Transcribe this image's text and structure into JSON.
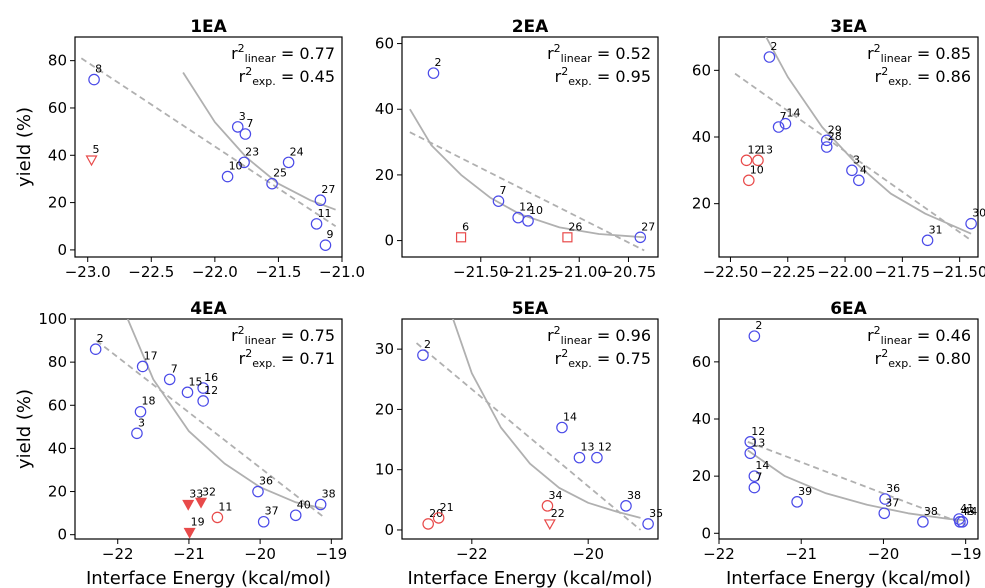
{
  "chart_data": [
    {
      "type": "scatter",
      "title": "1EA",
      "r2_linear": "0.77",
      "r2_exp": "0.45",
      "xlim": [
        -23.1,
        -21.0
      ],
      "ylim": [
        -3,
        90
      ],
      "xticks": [
        "-23.0",
        "-22.5",
        "-22.0",
        "-21.5",
        "-21.0"
      ],
      "xtick_values": [
        -23.0,
        -22.5,
        -22.0,
        -21.5,
        -21.0
      ],
      "yticks": [
        "0",
        "20",
        "40",
        "60",
        "80"
      ],
      "ytick_values": [
        0,
        20,
        40,
        60,
        80
      ],
      "ylabel": "yield (%)",
      "xlabel": "",
      "linear_fit": [
        [
          -23.05,
          81
        ],
        [
          -21.05,
          10
        ]
      ],
      "exp_fit": [
        [
          -22.25,
          75
        ],
        [
          -22.0,
          54
        ],
        [
          -21.75,
          39
        ],
        [
          -21.5,
          28
        ],
        [
          -21.25,
          21
        ],
        [
          -21.05,
          17
        ]
      ],
      "points": [
        {
          "x": -22.95,
          "y": 72,
          "label": "8",
          "style": "blue-circle"
        },
        {
          "x": -22.97,
          "y": 38,
          "label": "5",
          "style": "red-triangle-open"
        },
        {
          "x": -21.82,
          "y": 52,
          "label": "3",
          "style": "blue-circle"
        },
        {
          "x": -21.76,
          "y": 49,
          "label": "7",
          "style": "blue-circle"
        },
        {
          "x": -21.77,
          "y": 37,
          "label": "23",
          "style": "blue-circle"
        },
        {
          "x": -21.9,
          "y": 31,
          "label": "10",
          "style": "blue-circle"
        },
        {
          "x": -21.42,
          "y": 37,
          "label": "24",
          "style": "blue-circle"
        },
        {
          "x": -21.55,
          "y": 28,
          "label": "25",
          "style": "blue-circle"
        },
        {
          "x": -21.17,
          "y": 21,
          "label": "27",
          "style": "blue-circle"
        },
        {
          "x": -21.2,
          "y": 11,
          "label": "11",
          "style": "blue-circle"
        },
        {
          "x": -21.13,
          "y": 2,
          "label": "9",
          "style": "blue-circle"
        }
      ]
    },
    {
      "type": "scatter",
      "title": "2EA",
      "r2_linear": "0.52",
      "r2_exp": "0.95",
      "xlim": [
        -21.9,
        -20.6
      ],
      "ylim": [
        -5,
        62
      ],
      "xticks": [
        "-21.50",
        "-21.25",
        "-21.00",
        "-20.75"
      ],
      "xtick_values": [
        -21.5,
        -21.25,
        -21.0,
        -20.75
      ],
      "yticks": [
        "0",
        "20",
        "40",
        "60"
      ],
      "ytick_values": [
        0,
        20,
        40,
        60
      ],
      "ylabel": "",
      "xlabel": "",
      "linear_fit": [
        [
          -21.86,
          33
        ],
        [
          -20.67,
          -3
        ]
      ],
      "exp_fit": [
        [
          -21.86,
          40
        ],
        [
          -21.75,
          29
        ],
        [
          -21.6,
          20
        ],
        [
          -21.45,
          13
        ],
        [
          -21.3,
          8
        ],
        [
          -21.1,
          4
        ],
        [
          -20.9,
          2
        ],
        [
          -20.67,
          1
        ]
      ],
      "points": [
        {
          "x": -21.74,
          "y": 51,
          "label": "2",
          "style": "blue-circle"
        },
        {
          "x": -21.41,
          "y": 12,
          "label": "7",
          "style": "blue-circle"
        },
        {
          "x": -21.31,
          "y": 7,
          "label": "12",
          "style": "blue-circle"
        },
        {
          "x": -21.26,
          "y": 6,
          "label": "10",
          "style": "blue-circle"
        },
        {
          "x": -20.69,
          "y": 1,
          "label": "27",
          "style": "blue-circle"
        },
        {
          "x": -21.6,
          "y": 1,
          "label": "6",
          "style": "red-square-open"
        },
        {
          "x": -21.06,
          "y": 1,
          "label": "26",
          "style": "red-square-open"
        }
      ]
    },
    {
      "type": "scatter",
      "title": "3EA",
      "r2_linear": "0.85",
      "r2_exp": "0.86",
      "xlim": [
        -22.55,
        -21.42
      ],
      "ylim": [
        4,
        70
      ],
      "xticks": [
        "-22.50",
        "-22.25",
        "-22.00",
        "-21.75",
        "-21.50"
      ],
      "xtick_values": [
        -22.5,
        -22.25,
        -22.0,
        -21.75,
        -21.5
      ],
      "yticks": [
        "20",
        "40",
        "60"
      ],
      "ytick_values": [
        20,
        40,
        60
      ],
      "ylabel": "",
      "xlabel": "",
      "linear_fit": [
        [
          -22.48,
          59
        ],
        [
          -21.45,
          9
        ]
      ],
      "exp_fit": [
        [
          -22.36,
          72
        ],
        [
          -22.25,
          58
        ],
        [
          -22.1,
          43
        ],
        [
          -21.95,
          32
        ],
        [
          -21.8,
          23
        ],
        [
          -21.65,
          17
        ],
        [
          -21.45,
          11
        ]
      ],
      "points": [
        {
          "x": -22.33,
          "y": 64,
          "label": "2",
          "style": "blue-circle"
        },
        {
          "x": -22.29,
          "y": 43,
          "label": "7",
          "style": "blue-circle"
        },
        {
          "x": -22.26,
          "y": 44,
          "label": "14",
          "style": "blue-circle"
        },
        {
          "x": -22.08,
          "y": 39,
          "label": "29",
          "style": "blue-circle"
        },
        {
          "x": -22.08,
          "y": 37,
          "label": "28",
          "style": "blue-circle"
        },
        {
          "x": -21.97,
          "y": 30,
          "label": "3",
          "style": "blue-circle"
        },
        {
          "x": -21.94,
          "y": 27,
          "label": "4",
          "style": "blue-circle"
        },
        {
          "x": -21.64,
          "y": 9,
          "label": "31",
          "style": "blue-circle"
        },
        {
          "x": -21.45,
          "y": 14,
          "label": "30",
          "style": "blue-circle"
        },
        {
          "x": -22.43,
          "y": 33,
          "label": "12",
          "style": "red-circle"
        },
        {
          "x": -22.38,
          "y": 33,
          "label": "13",
          "style": "red-circle"
        },
        {
          "x": -22.42,
          "y": 27,
          "label": "10",
          "style": "red-circle"
        }
      ]
    },
    {
      "type": "scatter",
      "title": "4EA",
      "r2_linear": "0.75",
      "r2_exp": "0.71",
      "xlim": [
        -22.6,
        -18.85
      ],
      "ylim": [
        -2,
        100
      ],
      "xticks": [
        "-22",
        "-21",
        "-20",
        "-19"
      ],
      "xtick_values": [
        -22,
        -21,
        -20,
        -19
      ],
      "yticks": [
        "0",
        "20",
        "40",
        "60",
        "80",
        "100"
      ],
      "ytick_values": [
        0,
        20,
        40,
        60,
        80,
        100
      ],
      "ylabel": "yield (%)",
      "xlabel": "Interface Energy (kcal/mol)",
      "linear_fit": [
        [
          -22.3,
          90
        ],
        [
          -19.1,
          8
        ]
      ],
      "exp_fit": [
        [
          -21.86,
          100
        ],
        [
          -21.5,
          72
        ],
        [
          -21.0,
          48
        ],
        [
          -20.5,
          33
        ],
        [
          -20.0,
          22
        ],
        [
          -19.5,
          15
        ],
        [
          -19.1,
          12
        ]
      ],
      "points": [
        {
          "x": -22.31,
          "y": 86,
          "label": "2",
          "style": "blue-circle"
        },
        {
          "x": -21.65,
          "y": 78,
          "label": "17",
          "style": "blue-circle"
        },
        {
          "x": -21.27,
          "y": 72,
          "label": "7",
          "style": "blue-circle"
        },
        {
          "x": -20.8,
          "y": 68,
          "label": "16",
          "style": "blue-circle"
        },
        {
          "x": -21.02,
          "y": 66,
          "label": "15",
          "style": "blue-circle"
        },
        {
          "x": -20.8,
          "y": 62,
          "label": "12",
          "style": "blue-circle"
        },
        {
          "x": -21.68,
          "y": 57,
          "label": "18",
          "style": "blue-circle"
        },
        {
          "x": -21.73,
          "y": 47,
          "label": "3",
          "style": "blue-circle"
        },
        {
          "x": -20.03,
          "y": 20,
          "label": "36",
          "style": "blue-circle"
        },
        {
          "x": -19.95,
          "y": 6,
          "label": "37",
          "style": "blue-circle"
        },
        {
          "x": -19.5,
          "y": 9,
          "label": "40",
          "style": "blue-circle"
        },
        {
          "x": -19.15,
          "y": 14,
          "label": "38",
          "style": "blue-circle"
        },
        {
          "x": -21.01,
          "y": 14,
          "label": "33",
          "style": "red-triangle-filled"
        },
        {
          "x": -20.83,
          "y": 15,
          "label": "32",
          "style": "red-triangle-filled"
        },
        {
          "x": -20.99,
          "y": 1,
          "label": "19",
          "style": "red-triangle-filled"
        },
        {
          "x": -20.6,
          "y": 8,
          "label": "11",
          "style": "red-circle"
        }
      ]
    },
    {
      "type": "scatter",
      "title": "5EA",
      "r2_linear": "0.96",
      "r2_exp": "0.75",
      "xlim": [
        -23.2,
        -18.8
      ],
      "ylim": [
        -1.5,
        35
      ],
      "xticks": [
        "-22",
        "-20"
      ],
      "xtick_values": [
        -22,
        -20
      ],
      "yticks": [
        "0",
        "10",
        "20",
        "30"
      ],
      "ytick_values": [
        0,
        10,
        20,
        30
      ],
      "ylabel": "",
      "xlabel": "Interface Energy (kcal/mol)",
      "linear_fit": [
        [
          -22.95,
          31
        ],
        [
          -19.1,
          0
        ]
      ],
      "exp_fit": [
        [
          -22.5,
          40
        ],
        [
          -22.0,
          26
        ],
        [
          -21.5,
          17
        ],
        [
          -21.0,
          11
        ],
        [
          -20.5,
          7
        ],
        [
          -20.0,
          4.5
        ],
        [
          -19.5,
          3
        ],
        [
          -19.1,
          2
        ]
      ],
      "points": [
        {
          "x": -22.84,
          "y": 29,
          "label": "2",
          "style": "blue-circle"
        },
        {
          "x": -20.45,
          "y": 17,
          "label": "14",
          "style": "blue-circle"
        },
        {
          "x": -20.15,
          "y": 12,
          "label": "13",
          "style": "blue-circle"
        },
        {
          "x": -19.85,
          "y": 12,
          "label": "12",
          "style": "blue-circle"
        },
        {
          "x": -19.35,
          "y": 4,
          "label": "38",
          "style": "blue-circle"
        },
        {
          "x": -18.97,
          "y": 1,
          "label": "35",
          "style": "blue-circle"
        },
        {
          "x": -22.75,
          "y": 1,
          "label": "20",
          "style": "red-circle"
        },
        {
          "x": -22.57,
          "y": 2,
          "label": "21",
          "style": "red-circle"
        },
        {
          "x": -20.7,
          "y": 4,
          "label": "34",
          "style": "red-circle"
        },
        {
          "x": -20.66,
          "y": 1,
          "label": "22",
          "style": "red-triangle-open"
        }
      ]
    },
    {
      "type": "scatter",
      "title": "6EA",
      "r2_linear": "0.46",
      "r2_exp": "0.80",
      "xlim": [
        -22.0,
        -18.85
      ],
      "ylim": [
        -2,
        75
      ],
      "xticks": [
        "-22",
        "-21",
        "-20",
        "-19"
      ],
      "xtick_values": [
        -22,
        -21,
        -20,
        -19
      ],
      "yticks": [
        "0",
        "20",
        "40",
        "60"
      ],
      "ytick_values": [
        0,
        20,
        40,
        60
      ],
      "ylabel": "",
      "xlabel": "Interface Energy (kcal/mol)",
      "linear_fit": [
        [
          -21.65,
          32
        ],
        [
          -19.0,
          3
        ]
      ],
      "exp_fit": [
        [
          -21.65,
          29
        ],
        [
          -21.2,
          20
        ],
        [
          -20.7,
          14
        ],
        [
          -20.2,
          10
        ],
        [
          -19.7,
          7
        ],
        [
          -19.2,
          5
        ],
        [
          -19.0,
          4.5
        ]
      ],
      "points": [
        {
          "x": -21.57,
          "y": 69,
          "label": "2",
          "style": "blue-circle"
        },
        {
          "x": -21.62,
          "y": 32,
          "label": "12",
          "style": "blue-circle"
        },
        {
          "x": -21.62,
          "y": 28,
          "label": "13",
          "style": "blue-circle"
        },
        {
          "x": -21.57,
          "y": 20,
          "label": "14",
          "style": "blue-circle"
        },
        {
          "x": -21.57,
          "y": 16,
          "label": "7",
          "style": "blue-circle"
        },
        {
          "x": -21.05,
          "y": 11,
          "label": "39",
          "style": "blue-circle"
        },
        {
          "x": -19.98,
          "y": 12,
          "label": "36",
          "style": "blue-circle"
        },
        {
          "x": -19.99,
          "y": 7,
          "label": "37",
          "style": "blue-circle"
        },
        {
          "x": -19.52,
          "y": 4,
          "label": "38",
          "style": "blue-circle"
        },
        {
          "x": -19.08,
          "y": 5,
          "label": "41",
          "style": "blue-circle"
        },
        {
          "x": -19.04,
          "y": 4,
          "label": "44",
          "style": "blue-circle"
        },
        {
          "x": -19.07,
          "y": 4,
          "label": "43",
          "style": "blue-circle"
        }
      ]
    }
  ]
}
